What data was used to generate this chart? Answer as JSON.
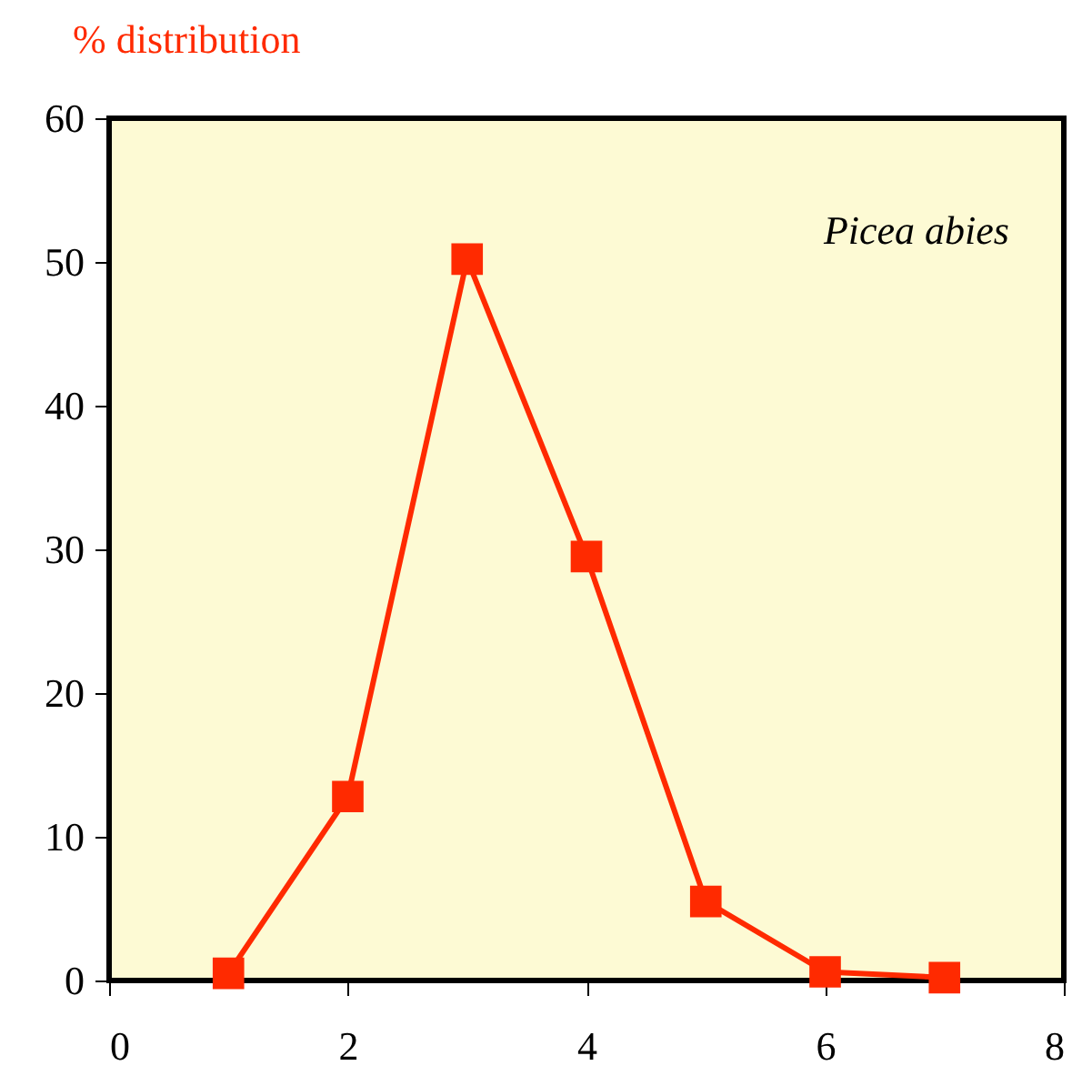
{
  "chart_data": {
    "type": "line",
    "title": "% distribution",
    "x": [
      1,
      2,
      3,
      4,
      5,
      6,
      7
    ],
    "series": [
      {
        "color": "#ff2a00",
        "values": [
          0.5,
          12.8,
          50.2,
          29.5,
          5.5,
          0.6,
          0.2
        ]
      }
    ],
    "xlim": [
      0,
      8
    ],
    "xticks": [
      0,
      2,
      4,
      6,
      8
    ],
    "ylim": [
      0,
      60
    ],
    "yticks": [
      0,
      10,
      20,
      30,
      40,
      50,
      60
    ],
    "grid": false,
    "marker": "square",
    "line_style": "solid",
    "annotations": [
      "Picea abies"
    ]
  }
}
